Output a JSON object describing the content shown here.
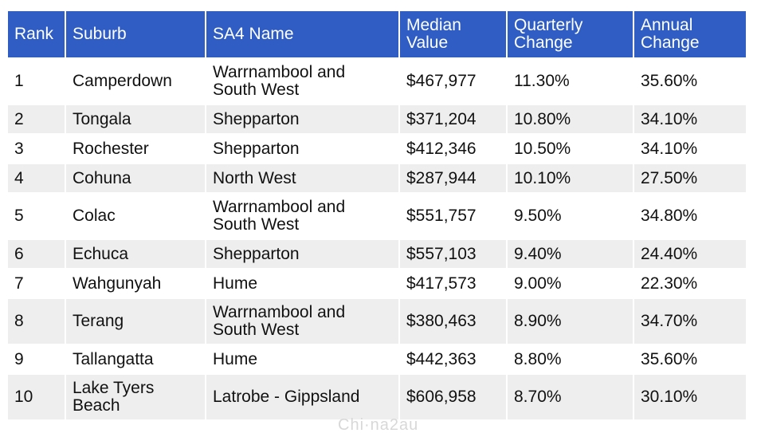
{
  "table": {
    "headers": {
      "rank": "Rank",
      "suburb": "Suburb",
      "sa4": "SA4 Name",
      "median": "Median Value",
      "quarterly": "Quarterly Change",
      "annual": "Annual Change"
    },
    "rows": [
      {
        "rank": "1",
        "suburb": "Camperdown",
        "sa4": "Warrnambool and South West",
        "median": "$467,977",
        "quarterly": "11.30%",
        "annual": "35.60%"
      },
      {
        "rank": "2",
        "suburb": "Tongala",
        "sa4": "Shepparton",
        "median": "$371,204",
        "quarterly": "10.80%",
        "annual": "34.10%"
      },
      {
        "rank": "3",
        "suburb": "Rochester",
        "sa4": "Shepparton",
        "median": "$412,346",
        "quarterly": "10.50%",
        "annual": "34.10%"
      },
      {
        "rank": "4",
        "suburb": "Cohuna",
        "sa4": "North West",
        "median": "$287,944",
        "quarterly": "10.10%",
        "annual": "27.50%"
      },
      {
        "rank": "5",
        "suburb": "Colac",
        "sa4": "Warrnambool and South West",
        "median": "$551,757",
        "quarterly": "9.50%",
        "annual": "34.80%"
      },
      {
        "rank": "6",
        "suburb": "Echuca",
        "sa4": "Shepparton",
        "median": "$557,103",
        "quarterly": "9.40%",
        "annual": "24.40%"
      },
      {
        "rank": "7",
        "suburb": "Wahgunyah",
        "sa4": "Hume",
        "median": "$417,573",
        "quarterly": "9.00%",
        "annual": "22.30%"
      },
      {
        "rank": "8",
        "suburb": "Terang",
        "sa4": "Warrnambool and South West",
        "median": "$380,463",
        "quarterly": "8.90%",
        "annual": "34.70%"
      },
      {
        "rank": "9",
        "suburb": "Tallangatta",
        "sa4": "Hume",
        "median": "$442,363",
        "quarterly": "8.80%",
        "annual": "35.60%"
      },
      {
        "rank": "10",
        "suburb": "Lake Tyers Beach",
        "sa4": "Latrobe - Gippsland",
        "median": "$606,958",
        "quarterly": "8.70%",
        "annual": "30.10%"
      }
    ]
  },
  "watermark": "Chi·na2au",
  "colors": {
    "header_bg": "#2f5dc4",
    "header_text": "#ffffff",
    "row_alt_bg": "#eeeeee",
    "row_bg": "#ffffff"
  }
}
